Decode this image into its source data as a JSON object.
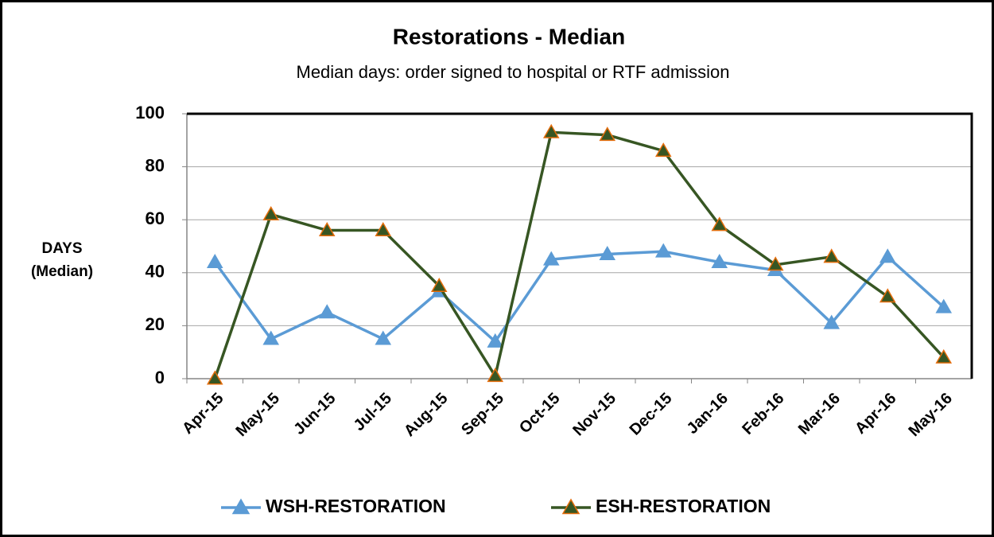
{
  "chart_data": {
    "type": "line",
    "title": "Restorations - Median",
    "subtitle": "Median days: order signed to hospital or RTF admission",
    "ylabel": [
      "DAYS",
      "(Median)"
    ],
    "categories": [
      "Apr-15",
      "May-15",
      "Jun-15",
      "Jul-15",
      "Aug-15",
      "Sep-15",
      "Oct-15",
      "Nov-15",
      "Dec-15",
      "Jan-16",
      "Feb-16",
      "Mar-16",
      "Apr-16",
      "May-16"
    ],
    "series": [
      {
        "name": "WSH-RESTORATION",
        "color": "#5b9bd5",
        "marker_edge": "#5b9bd5",
        "values": [
          44,
          15,
          25,
          15,
          33,
          14,
          45,
          47,
          48,
          44,
          41,
          21,
          46,
          27
        ]
      },
      {
        "name": "ESH-RESTORATION",
        "color": "#375623",
        "marker_edge": "#e46c0a",
        "values": [
          0,
          62,
          56,
          56,
          35,
          1,
          93,
          92,
          86,
          58,
          43,
          46,
          31,
          8
        ]
      }
    ],
    "ylim": [
      0,
      100
    ],
    "yticks": [
      0,
      20,
      40,
      60,
      80,
      100
    ],
    "grid": true,
    "legend": "bottom"
  }
}
